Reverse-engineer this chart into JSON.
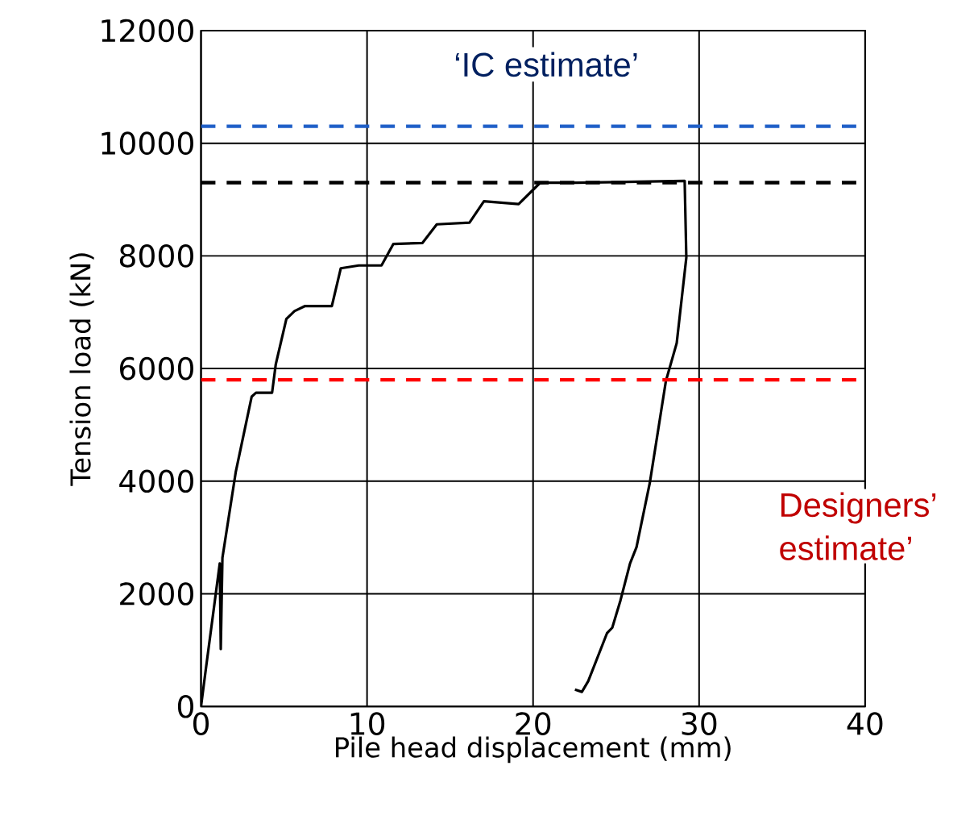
{
  "chart_data": {
    "type": "line",
    "xlabel": "Pile head displacement (mm)",
    "ylabel": "Tension load (kN)",
    "xlim": [
      0,
      40
    ],
    "ylim": [
      0,
      12000
    ],
    "xticks": [
      0,
      10,
      20,
      30,
      40
    ],
    "yticks": [
      0,
      2000,
      4000,
      6000,
      8000,
      10000,
      12000
    ],
    "grid": true,
    "marker": "none",
    "line_style": "solid",
    "series": [
      {
        "color": "#000000",
        "x": [
          0,
          0.32,
          1.13,
          1.19,
          1.29,
          2.09,
          3.05,
          3.31,
          4.28,
          4.5,
          5.14,
          5.63,
          6.27,
          7.88,
          8.42,
          9.5,
          10.87,
          11.58,
          13.34,
          14.2,
          16.17,
          17.04,
          19.13,
          20.4,
          20.74,
          22.6,
          29.13,
          29.23,
          28.65,
          28.0,
          27.03,
          26.23,
          25.84,
          25.26,
          24.77,
          24.45,
          23.32,
          22.94,
          22.52
        ],
        "values": [
          0,
          730,
          2540,
          1020,
          2640,
          4160,
          5500,
          5570,
          5570,
          6070,
          6880,
          7020,
          7110,
          7110,
          7780,
          7830,
          7830,
          8210,
          8230,
          8560,
          8590,
          8970,
          8920,
          9290,
          9300,
          9300,
          9330,
          7970,
          6450,
          5780,
          3970,
          2830,
          2540,
          1880,
          1400,
          1300,
          450,
          260,
          300
        ]
      }
    ],
    "ref_lines": [
      {
        "axis": "y",
        "value": 10300,
        "color": "#1f5fc8",
        "line_style": "dashed"
      },
      {
        "axis": "y",
        "value": 9300,
        "color": "#000000",
        "line_style": "dashed"
      },
      {
        "axis": "y",
        "value": 5800,
        "color": "#ff0000",
        "line_style": "dashed"
      }
    ],
    "annotations": [
      "‘IC estimate’",
      "Designers’ estimate’"
    ]
  }
}
